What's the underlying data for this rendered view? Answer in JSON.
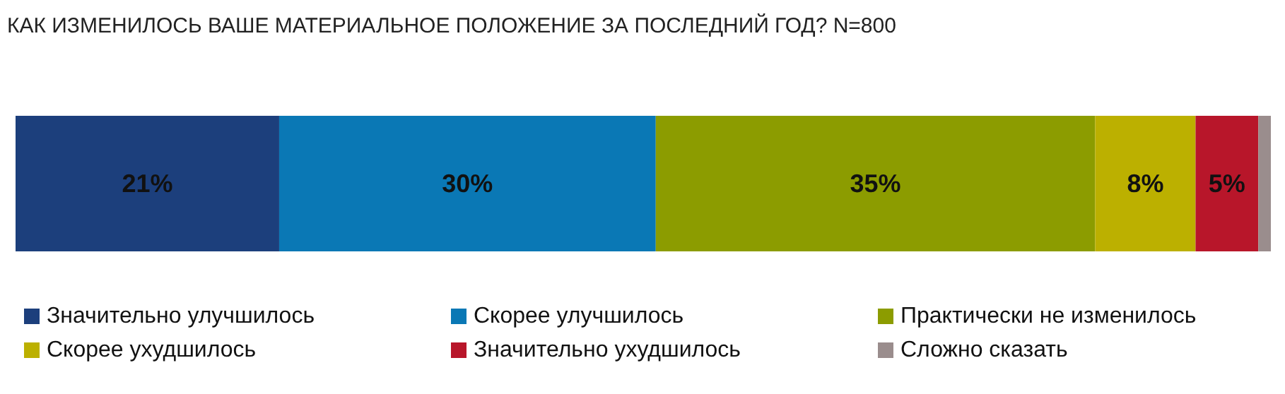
{
  "chart_data": {
    "type": "bar",
    "orientation": "horizontal",
    "stacked": true,
    "title": "КАК ИЗМЕНИЛОСЬ ВАШЕ МАТЕРИАЛЬНОЕ ПОЛОЖЕНИЕ ЗА ПОСЛЕДНИЙ ГОД? N=800",
    "categories": [
      null
    ],
    "xlim": [
      0,
      100
    ],
    "legend": "bottom",
    "series": [
      {
        "name": "Значительно улучшилось",
        "color": "#1c3f7c",
        "values": [
          21
        ],
        "value_labels": [
          "21%"
        ]
      },
      {
        "name": "Скорее улучшилось",
        "color": "#0a78b5",
        "values": [
          30
        ],
        "value_labels": [
          "30%"
        ]
      },
      {
        "name": "Практически не изменилось",
        "color": "#8c9c00",
        "values": [
          35
        ],
        "value_labels": [
          "35%"
        ]
      },
      {
        "name": "Скорее ухудшилось",
        "color": "#bcb000",
        "values": [
          8
        ],
        "value_labels": [
          "8%"
        ]
      },
      {
        "name": "Значительно ухудшилось",
        "color": "#b8162a",
        "values": [
          5
        ],
        "value_labels": [
          "5%"
        ]
      },
      {
        "name": "Сложно сказать",
        "color": "#9a8d8d",
        "values": [
          1
        ],
        "value_labels": [
          null
        ]
      }
    ]
  }
}
